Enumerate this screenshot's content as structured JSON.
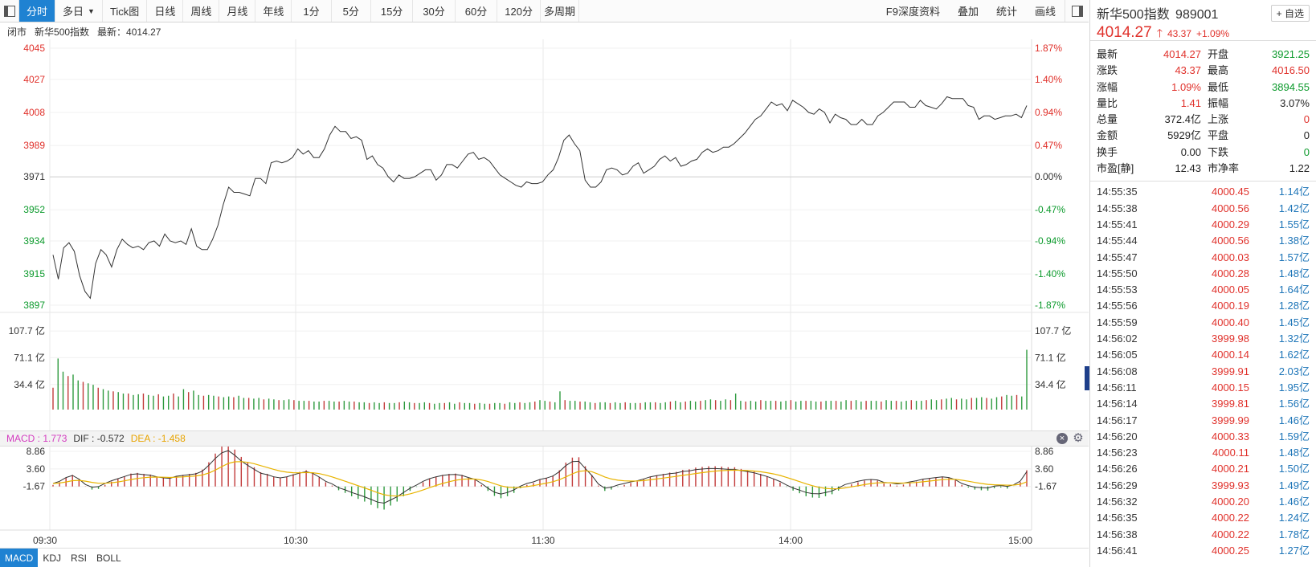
{
  "toolbar": {
    "tabs": [
      "分时",
      "多日",
      "Tick图",
      "日线",
      "周线",
      "月线",
      "年线",
      "1分",
      "5分",
      "15分",
      "30分",
      "60分",
      "120分",
      "多周期"
    ],
    "active_tab": "分时",
    "right_buttons": [
      "F9深度资料",
      "叠加",
      "统计",
      "画线"
    ]
  },
  "status": {
    "state": "闭市",
    "name": "新华500指数",
    "latest_label": "最新：4014.27"
  },
  "header": {
    "name": "新华500指数",
    "code": "989001",
    "add_favorite": "+ 自选",
    "price": "4014.27",
    "change": "43.37",
    "change_pct": "+1.09%"
  },
  "quote": [
    [
      "最新",
      "4014.27",
      "red",
      "开盘",
      "3921.25",
      "green"
    ],
    [
      "涨跌",
      "43.37",
      "red",
      "最高",
      "4016.50",
      "red"
    ],
    [
      "涨幅",
      "1.09%",
      "red",
      "最低",
      "3894.55",
      "green"
    ],
    [
      "量比",
      "1.41",
      "red",
      "振幅",
      "3.07%",
      "dark"
    ],
    [
      "总量",
      "372.4亿",
      "dark",
      "上涨",
      "0",
      "red"
    ],
    [
      "金额",
      "5929亿",
      "dark",
      "平盘",
      "0",
      "dark"
    ],
    [
      "换手",
      "0.00",
      "dark",
      "下跌",
      "0",
      "green"
    ],
    [
      "市盈[静]",
      "12.43",
      "dark",
      "市净率",
      "1.22",
      "dark"
    ]
  ],
  "ticks": [
    [
      "14:55:35",
      "4000.45",
      "1.14亿"
    ],
    [
      "14:55:38",
      "4000.56",
      "1.42亿"
    ],
    [
      "14:55:41",
      "4000.29",
      "1.55亿"
    ],
    [
      "14:55:44",
      "4000.56",
      "1.38亿"
    ],
    [
      "14:55:47",
      "4000.03",
      "1.57亿"
    ],
    [
      "14:55:50",
      "4000.28",
      "1.48亿"
    ],
    [
      "14:55:53",
      "4000.05",
      "1.64亿"
    ],
    [
      "14:55:56",
      "4000.19",
      "1.28亿"
    ],
    [
      "14:55:59",
      "4000.40",
      "1.45亿"
    ],
    [
      "14:56:02",
      "3999.98",
      "1.32亿"
    ],
    [
      "14:56:05",
      "4000.14",
      "1.62亿"
    ],
    [
      "14:56:08",
      "3999.91",
      "2.03亿"
    ],
    [
      "14:56:11",
      "4000.15",
      "1.95亿"
    ],
    [
      "14:56:14",
      "3999.81",
      "1.56亿"
    ],
    [
      "14:56:17",
      "3999.99",
      "1.46亿"
    ],
    [
      "14:56:20",
      "4000.33",
      "1.59亿"
    ],
    [
      "14:56:23",
      "4000.11",
      "1.48亿"
    ],
    [
      "14:56:26",
      "4000.21",
      "1.50亿"
    ],
    [
      "14:56:29",
      "3999.93",
      "1.49亿"
    ],
    [
      "14:56:32",
      "4000.20",
      "1.46亿"
    ],
    [
      "14:56:35",
      "4000.22",
      "1.24亿"
    ],
    [
      "14:56:38",
      "4000.22",
      "1.78亿"
    ],
    [
      "14:56:41",
      "4000.25",
      "1.27亿"
    ]
  ],
  "macd_header": {
    "macd": "MACD : 1.773",
    "dif": "DIF : -0.572",
    "dea": "DEA : -1.458"
  },
  "indicator_tabs": [
    "MACD",
    "KDJ",
    "RSI",
    "BOLL"
  ],
  "colors": {
    "up": "#e0312b",
    "down": "#0c9a2c",
    "accent": "#1f82d2",
    "dif": "#333333",
    "dea": "#e8b400"
  },
  "chart_data": {
    "type": "line",
    "title": "",
    "price_ticks": [
      "4045",
      "4027",
      "4008",
      "3989",
      "3971",
      "3952",
      "3934",
      "3915",
      "3897"
    ],
    "pct_ticks": [
      "1.87%",
      "1.40%",
      "0.94%",
      "0.47%",
      "0.00%",
      "-0.47%",
      "-0.94%",
      "-1.40%",
      "-1.87%"
    ],
    "volume_ticks": [
      "107.7 亿",
      "71.1 亿",
      "34.4 亿"
    ],
    "macd_ticks": [
      "8.86",
      "3.60",
      "-1.67"
    ],
    "x_ticks": [
      "09:30",
      "10:30",
      "11:30",
      "14:00",
      "15:00"
    ],
    "y_range": [
      3897,
      4045
    ],
    "prev_close": 3970.9,
    "price": [
      3926,
      3912,
      3930,
      3933,
      3928,
      3914,
      3905,
      3901,
      3921,
      3929,
      3926,
      3919,
      3929,
      3935,
      3932,
      3930,
      3931,
      3929,
      3933,
      3934,
      3931,
      3938,
      3934,
      3933,
      3934,
      3932,
      3941,
      3931,
      3929,
      3929,
      3935,
      3943,
      3955,
      3965,
      3962,
      3962,
      3961,
      3960,
      3970,
      3970,
      3967,
      3979,
      3980,
      3979,
      3980,
      3982,
      3987,
      3984,
      3986,
      3982,
      3982,
      3987,
      3995,
      4000,
      3997,
      3997,
      3993,
      3994,
      3992,
      3981,
      3983,
      3978,
      3976,
      3971,
      3968,
      3972,
      3970,
      3970,
      3971,
      3973,
      3975,
      3975,
      3969,
      3972,
      3978,
      3978,
      3976,
      3980,
      3984,
      3985,
      3981,
      3982,
      3980,
      3976,
      3972,
      3970,
      3968,
      3966,
      3965,
      3968,
      3967,
      3967,
      3968,
      3972,
      3975,
      3982,
      3992,
      3995,
      3990,
      3986,
      3969,
      3965,
      3965,
      3968,
      3975,
      3976,
      3975,
      3972,
      3973,
      3977,
      3979,
      3973,
      3975,
      3977,
      3981,
      3983,
      3980,
      3982,
      3977,
      3978,
      3980,
      3981,
      3985,
      3987,
      3985,
      3986,
      3988,
      3988,
      3990,
      3993,
      3996,
      4000,
      4004,
      4006,
      4010,
      4014,
      4012,
      4013,
      4009,
      4015,
      4013,
      4011,
      4008,
      4007,
      4010,
      4008,
      4002,
      4007,
      4005,
      4004,
      4001,
      4001,
      4004,
      4001,
      4001,
      4006,
      4008,
      4011,
      4014,
      4014,
      4014,
      4011,
      4011,
      4015,
      4012,
      4011,
      4010,
      4013,
      4017,
      4016,
      4016,
      4016,
      4012,
      4011,
      4004,
      4006,
      4006,
      4004,
      4005,
      4006,
      4006,
      4007,
      4005,
      4012
    ],
    "volume": [
      30,
      70,
      52,
      46,
      48,
      40,
      38,
      36,
      34,
      30,
      28,
      26,
      25,
      24,
      22,
      22,
      20,
      21,
      22,
      20,
      19,
      21,
      18,
      19,
      22,
      18,
      28,
      24,
      26,
      20,
      19,
      20,
      19,
      18,
      17,
      18,
      17,
      19,
      16,
      16,
      15,
      16,
      14,
      15,
      14,
      13,
      13,
      14,
      13,
      12,
      12,
      12,
      11,
      11,
      12,
      12,
      11,
      11,
      12,
      11,
      11,
      10,
      10,
      9,
      10,
      9,
      10,
      9,
      9,
      10,
      11,
      10,
      9,
      9,
      10,
      9,
      8,
      9,
      9,
      10,
      8,
      10,
      9,
      9,
      8,
      9,
      8,
      8,
      9,
      9,
      8,
      10,
      9,
      10,
      9,
      10,
      11,
      13,
      12,
      11,
      10,
      25,
      13,
      12,
      12,
      11,
      11,
      10,
      9,
      10,
      10,
      9,
      10,
      9,
      10,
      9,
      9,
      9,
      10,
      10,
      10,
      9,
      10,
      11,
      12,
      10,
      11,
      12,
      11,
      12,
      13,
      14,
      13,
      12,
      14,
      13,
      22,
      12,
      11,
      12,
      11,
      13,
      12,
      12,
      12,
      11,
      12,
      13,
      11,
      12,
      12,
      12,
      11,
      11,
      12,
      12,
      12,
      11,
      13,
      12,
      13,
      11,
      12,
      12,
      12,
      11,
      13,
      12,
      12,
      11,
      12,
      13,
      12,
      12,
      13,
      14,
      13,
      14,
      15,
      16,
      14,
      15,
      14,
      16,
      16,
      17,
      16,
      15,
      17,
      18,
      20,
      19,
      20,
      18,
      82
    ],
    "macd": [
      -1.2,
      -0.4,
      1.0,
      1.8,
      0.4,
      -1.6,
      -2.6,
      -2.4,
      -1.2,
      -0.2,
      0.6,
      1.4,
      2.2,
      2.4,
      2.1,
      1.9,
      1.3,
      0.9,
      0.7,
      1.5,
      1.8,
      2.1,
      2.4,
      3.4,
      5.6,
      8.2,
      10.3,
      11.1,
      9.4,
      7.2,
      5.6,
      4.1,
      2.6,
      2.1,
      1.3,
      0.9,
      1.3,
      2.0,
      2.7,
      3.2,
      2.6,
      1.2,
      -0.4,
      -1.4,
      -2.8,
      -3.6,
      -4.6,
      -5.4,
      -6.2,
      -7.2,
      -8.2,
      -8.6,
      -7.4,
      -6.2,
      -4.6,
      -3.0,
      -1.8,
      -0.4,
      0.6,
      1.3,
      1.8,
      2.1,
      2.2,
      1.8,
      1.0,
      0.3,
      -1.2,
      -3.0,
      -4.5,
      -5.2,
      -4.6,
      -3.6,
      -2.2,
      -1.2,
      -0.6,
      0.3,
      0.8,
      1.6,
      3.2,
      5.5,
      7.0,
      7.1,
      4.4,
      1.8,
      -1.4,
      -3.0,
      -2.6,
      -1.8,
      -1.2,
      -0.6,
      -0.2,
      0.5,
      1.3,
      1.7,
      2.1,
      2.5,
      2.7,
      3.3,
      3.5,
      4.0,
      4.2,
      4.4,
      4.4,
      4.3,
      4.1,
      4.1,
      3.6,
      3.2,
      2.8,
      2.1,
      1.4,
      0.5,
      -0.5,
      -1.8,
      -2.9,
      -3.7,
      -4.6,
      -5.0,
      -5.1,
      -4.6,
      -4.0,
      -2.9,
      -1.6,
      -1.0,
      -0.4,
      0.1,
      0.3,
      0.1,
      -0.8,
      -1.0,
      -1.4,
      -1.1,
      -0.6,
      -0.2,
      0.4,
      0.7,
      1.0,
      1.3,
      1.0,
      0.2,
      -1.2,
      -2.0,
      -2.6,
      -2.8,
      -2.9,
      -2.2,
      -2.0,
      -2.3,
      -1.7,
      -0.3,
      3.2
    ]
  }
}
